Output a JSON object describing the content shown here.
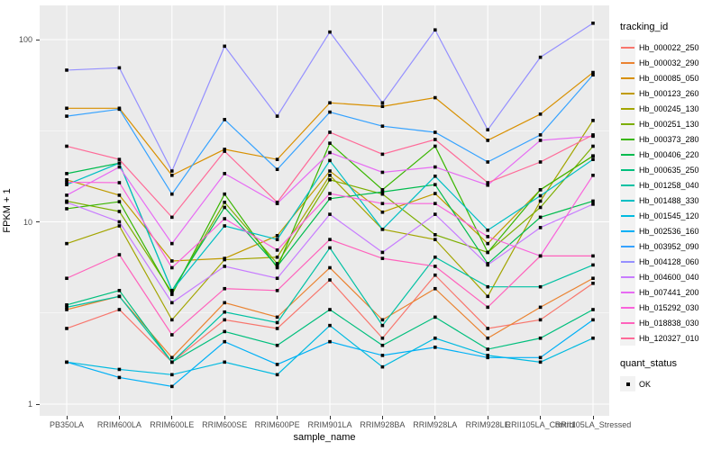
{
  "figure": {
    "background": "#FFFFFF",
    "panel_background": "#EBEBEB",
    "grid_color": "#FFFFFF",
    "axis_text_color": "#4D4D4D",
    "marker_color": "#000000"
  },
  "chart_data": {
    "type": "line",
    "title": "",
    "xlabel": "sample_name",
    "ylabel": "FPKM + 1",
    "y_scale": "log10",
    "ylim": [
      1,
      140
    ],
    "y_ticks": [
      1,
      10,
      100
    ],
    "y_minor_ticks": [
      3.162,
      31.62
    ],
    "grid": true,
    "marker": "square",
    "legend_title": "tracking_id",
    "legend_position": "right",
    "legend2_title": "quant_status",
    "legend2_items": [
      {
        "label": "OK",
        "shape": "square",
        "color": "#000000"
      }
    ],
    "categories": [
      "PB350LA",
      "RRIM600LA",
      "RRIM600LE",
      "RRIM600SE",
      "RRIM600PE",
      "RRIM901LA",
      "RRIM928BA",
      "RRIM928LA",
      "RRIM928LE",
      "RRII105LA_Control",
      "RRII105LA_Stressed"
    ],
    "series": [
      {
        "name": "Hb_000022_250",
        "color": "#F8766D",
        "values": [
          2.6,
          3.3,
          1.7,
          2.9,
          2.6,
          4.8,
          2.3,
          5.1,
          2.6,
          2.9,
          4.6
        ]
      },
      {
        "name": "Hb_000032_290",
        "color": "#EA8331",
        "values": [
          3.3,
          3.9,
          1.8,
          3.6,
          3.0,
          5.6,
          2.9,
          4.3,
          2.3,
          3.4,
          4.9
        ]
      },
      {
        "name": "Hb_000085_050",
        "color": "#D89000",
        "values": [
          42,
          42,
          18,
          25,
          22,
          45,
          43,
          48,
          28,
          39,
          66
        ]
      },
      {
        "name": "Hb_000123_260",
        "color": "#C09B00",
        "values": [
          17,
          14,
          6.1,
          6.3,
          8.4,
          19,
          11.3,
          14.3,
          7.6,
          15,
          23
        ]
      },
      {
        "name": "Hb_000245_130",
        "color": "#A3A500",
        "values": [
          7.6,
          9.5,
          2.9,
          6.2,
          6.4,
          18,
          9.1,
          8.0,
          3.9,
          13,
          36
        ]
      },
      {
        "name": "Hb_000251_130",
        "color": "#7CAE00",
        "values": [
          13,
          11.4,
          4.1,
          12.8,
          5.9,
          17,
          14.2,
          8.5,
          6.8,
          12,
          26
        ]
      },
      {
        "name": "Hb_000373_280",
        "color": "#39B600",
        "values": [
          11.8,
          12.9,
          4.0,
          14.2,
          5.6,
          27,
          15,
          26,
          6.8,
          15,
          23
        ]
      },
      {
        "name": "Hb_000406_220",
        "color": "#00BB4E",
        "values": [
          18.4,
          21,
          4.2,
          12,
          5.7,
          13.4,
          14.6,
          16,
          5.9,
          10.6,
          13
        ]
      },
      {
        "name": "Hb_000635_250",
        "color": "#00BF7D",
        "values": [
          3.5,
          4.2,
          1.7,
          2.5,
          2.1,
          3.3,
          2.1,
          3.0,
          2.0,
          2.3,
          3.3
        ]
      },
      {
        "name": "Hb_001258_040",
        "color": "#00C1A3",
        "values": [
          3.4,
          3.9,
          1.7,
          3.2,
          2.8,
          7.2,
          2.7,
          6.4,
          4.4,
          4.4,
          5.8
        ]
      },
      {
        "name": "Hb_001488_330",
        "color": "#00BFC4",
        "values": [
          16,
          21,
          4.2,
          9.5,
          8.0,
          21.7,
          9.1,
          17.8,
          9.0,
          13.9,
          22
        ]
      },
      {
        "name": "Hb_001545_120",
        "color": "#00BAE0",
        "values": [
          1.7,
          1.55,
          1.45,
          1.7,
          1.45,
          2.7,
          1.6,
          2.3,
          1.85,
          1.7,
          2.3
        ]
      },
      {
        "name": "Hb_002536_160",
        "color": "#00B0F6",
        "values": [
          1.7,
          1.4,
          1.25,
          2.2,
          1.65,
          2.2,
          1.85,
          2.05,
          1.8,
          1.8,
          2.9
        ]
      },
      {
        "name": "Hb_003952_090",
        "color": "#35A2FF",
        "values": [
          38,
          41.5,
          14.2,
          36.4,
          19.4,
          40,
          33.5,
          31,
          21.3,
          30,
          64
        ]
      },
      {
        "name": "Hb_004128_060",
        "color": "#9590FF",
        "values": [
          68,
          70,
          19,
          92,
          38,
          110,
          45,
          113,
          32,
          80,
          123
        ]
      },
      {
        "name": "Hb_004600_040",
        "color": "#C77CFF",
        "values": [
          12.8,
          10,
          3.6,
          5.7,
          4.9,
          11,
          6.8,
          11,
          5.8,
          9.3,
          12.5
        ]
      },
      {
        "name": "Hb_007441_200",
        "color": "#E76BF3",
        "values": [
          14,
          20,
          7.6,
          18.4,
          12.6,
          24,
          18.7,
          20,
          15.9,
          28,
          29.5
        ]
      },
      {
        "name": "Hb_015292_030",
        "color": "#FA62DB",
        "values": [
          16.5,
          16.4,
          5.6,
          10.4,
          7.0,
          14.3,
          12.6,
          12.6,
          8.3,
          6.5,
          18
        ]
      },
      {
        "name": "Hb_018838_030",
        "color": "#FF62BC",
        "values": [
          4.9,
          6.6,
          2.4,
          4.3,
          4.2,
          8.0,
          6.3,
          5.7,
          3.4,
          6.5,
          6.5
        ]
      },
      {
        "name": "Hb_120327_010",
        "color": "#FF6A98",
        "values": [
          26,
          22,
          10.6,
          24.4,
          12.8,
          31,
          23.5,
          28.3,
          16.4,
          21.3,
          30
        ]
      }
    ]
  }
}
